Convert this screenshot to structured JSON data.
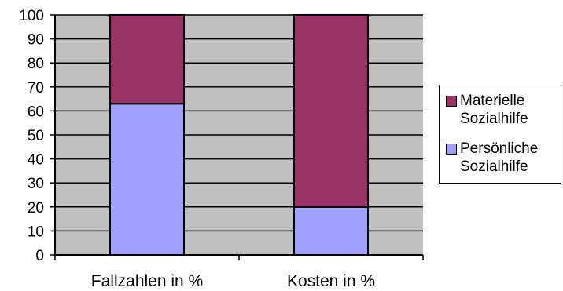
{
  "chart_data": {
    "type": "bar",
    "stacked": true,
    "categories": [
      "Fallzahlen in %",
      "Kosten in %"
    ],
    "series": [
      {
        "name": "Persönliche Sozialhilfe",
        "values": [
          63,
          20
        ],
        "color": "#a0a0ff"
      },
      {
        "name": "Materielle Sozialhilfe",
        "values": [
          37,
          80
        ],
        "color": "#993366"
      }
    ],
    "ylim": [
      0,
      100
    ],
    "yticks": [
      0,
      10,
      20,
      30,
      40,
      50,
      60,
      70,
      80,
      90,
      100
    ],
    "grid": true,
    "plot_background": "#c0c0c0",
    "legend_position": "right",
    "legend": [
      {
        "label": "Materielle Sozialhilfe",
        "color": "#993366"
      },
      {
        "label": "Persönliche Sozialhilfe",
        "color": "#a0a0ff"
      }
    ]
  }
}
